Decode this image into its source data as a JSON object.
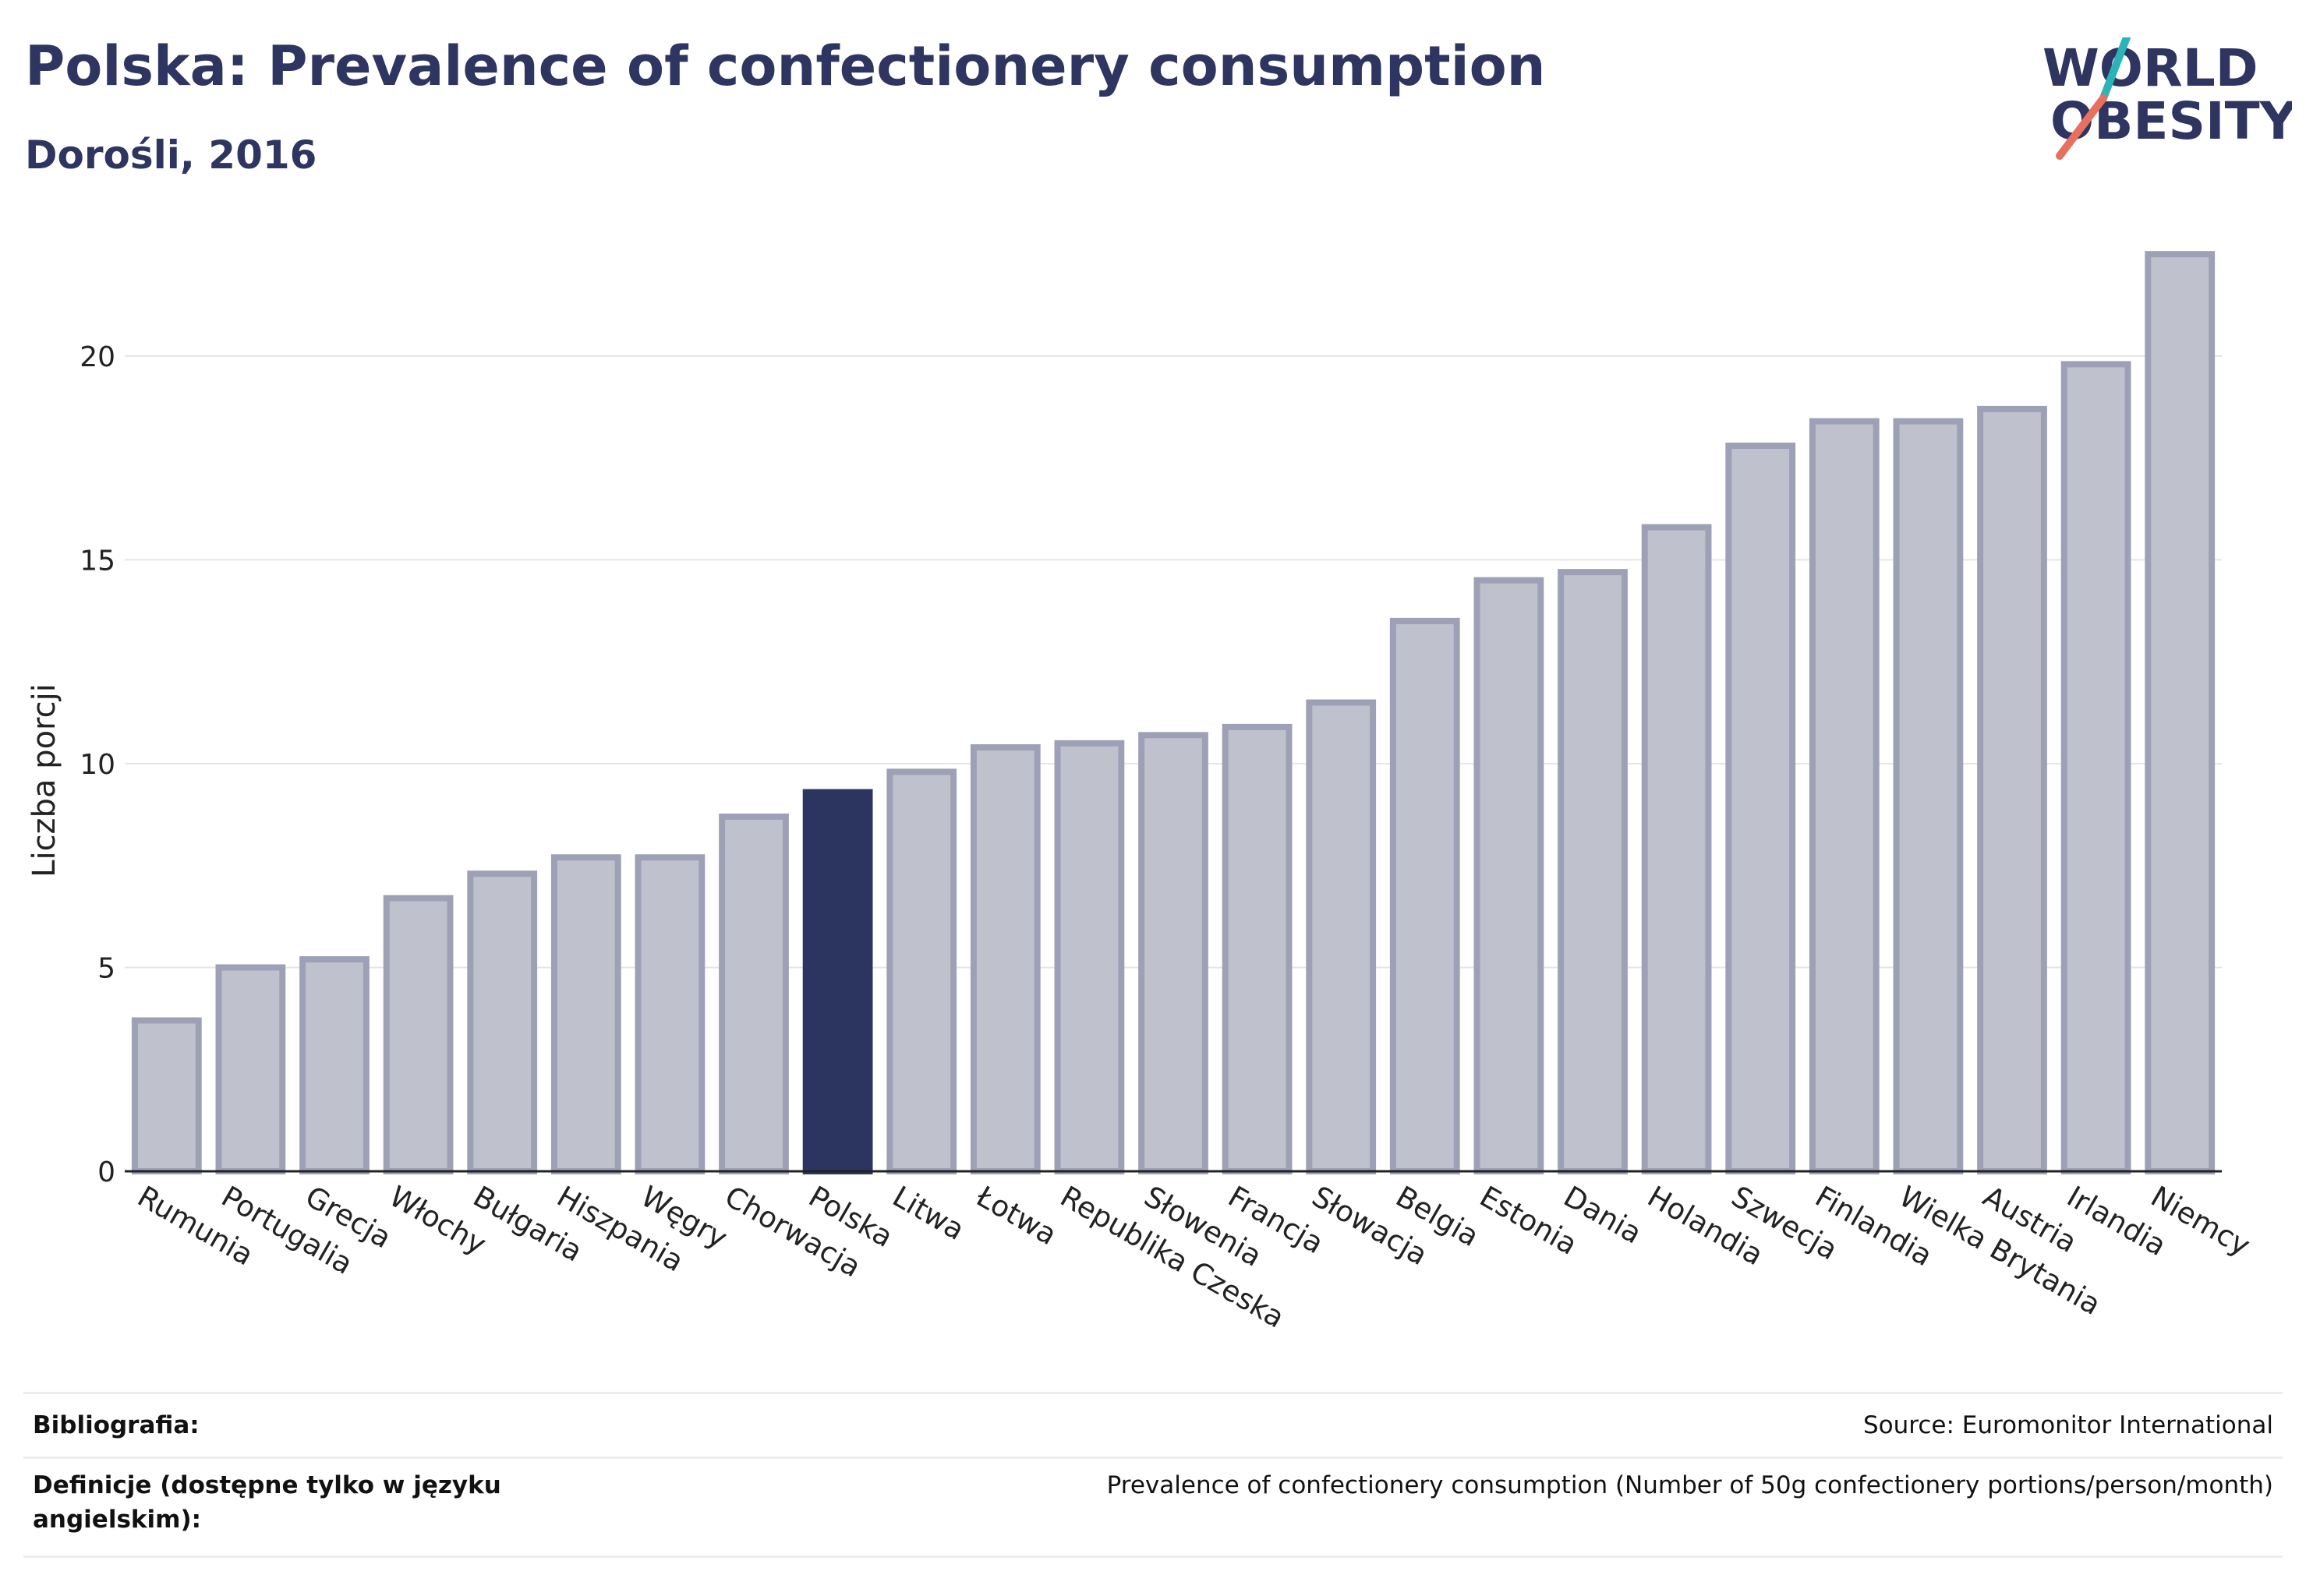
{
  "header": {
    "title": "Polska: Prevalence of confectionery consumption",
    "subtitle": "Dorośli, 2016"
  },
  "logo": {
    "line1": "WORLD",
    "line2": "OBESITY",
    "accent_teal": "#2ab3b8",
    "accent_coral": "#e8705f"
  },
  "colors": {
    "bar": "#bfc1cd",
    "bar_outline": "#9ea1b6",
    "highlight": "#2c3560"
  },
  "chart_data": {
    "type": "bar",
    "title": "Polska: Prevalence of confectionery consumption",
    "subtitle": "Dorośli, 2016",
    "xlabel": "",
    "ylabel": "Liczba porcji",
    "ylim": [
      0,
      23
    ],
    "yticks": [
      0,
      5,
      10,
      15,
      20
    ],
    "grid": true,
    "highlight": "Polska",
    "categories": [
      "Rumunia",
      "Portugalia",
      "Grecja",
      "Włochy",
      "Bułgaria",
      "Hiszpania",
      "Węgry",
      "Chorwacja",
      "Polska",
      "Litwa",
      "Łotwa",
      "Republika Czeska",
      "Słowenia",
      "Francja",
      "Słowacja",
      "Belgia",
      "Estonia",
      "Dania",
      "Holandia",
      "Szwecja",
      "Finlandia",
      "Wielka Brytania",
      "Austria",
      "Irlandia",
      "Niemcy"
    ],
    "values": [
      3.7,
      5.0,
      5.2,
      6.7,
      7.3,
      7.7,
      7.7,
      8.7,
      9.3,
      9.8,
      10.4,
      10.5,
      10.7,
      10.9,
      11.5,
      13.5,
      14.5,
      14.7,
      15.8,
      17.8,
      18.4,
      18.4,
      18.7,
      19.8,
      22.5
    ]
  },
  "footer": {
    "rows": [
      {
        "key": "Bibliografia:",
        "value": "Source: Euromonitor International"
      },
      {
        "key": "Definicje (dostępne tylko w języku angielskim):",
        "value": "Prevalence of confectionery consumption (Number of 50g confectionery portions/person/month)"
      }
    ]
  }
}
